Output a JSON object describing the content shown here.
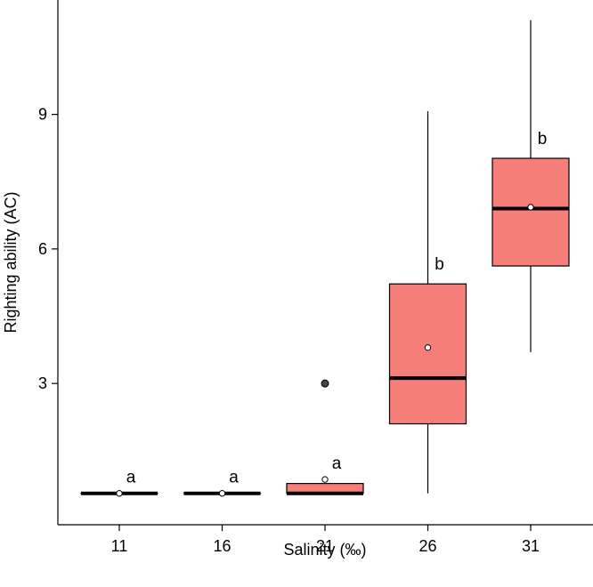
{
  "chart_data": {
    "type": "box",
    "title": "",
    "xlabel": "Salinity (‰)",
    "ylabel": "Righting ability (AC)",
    "ylim": [
      -0.15,
      11.55
    ],
    "yticks": [
      "3",
      "6",
      "9"
    ],
    "categories": [
      "11",
      "16",
      "21",
      "26",
      "31"
    ],
    "boxes": [
      {
        "category": "11",
        "min": 0.55,
        "q1": 0.55,
        "median": 0.55,
        "q3": 0.55,
        "max": 0.55,
        "mean": 0.55,
        "outliers": [],
        "letter": "a"
      },
      {
        "category": "16",
        "min": 0.55,
        "q1": 0.55,
        "median": 0.55,
        "q3": 0.55,
        "max": 0.55,
        "mean": 0.55,
        "outliers": [],
        "letter": "a"
      },
      {
        "category": "21",
        "min": 0.55,
        "q1": 0.55,
        "median": 0.55,
        "q3": 0.77,
        "max": 0.77,
        "mean": 0.86,
        "outliers": [
          3.0
        ],
        "letter": "a"
      },
      {
        "category": "26",
        "min": 0.55,
        "q1": 2.1,
        "median": 3.12,
        "q3": 5.22,
        "max": 9.07,
        "mean": 3.8,
        "outliers": [],
        "letter": "b"
      },
      {
        "category": "31",
        "min": 3.7,
        "q1": 5.62,
        "median": 6.9,
        "q3": 8.02,
        "max": 11.1,
        "mean": 6.93,
        "outliers": [],
        "letter": "b"
      }
    ],
    "colors": {
      "box_fill": "#f67f7a",
      "stroke": "#000000",
      "mean_marker": "#ffffff",
      "outlier": "#444444"
    },
    "grid": false,
    "legend": "none"
  }
}
